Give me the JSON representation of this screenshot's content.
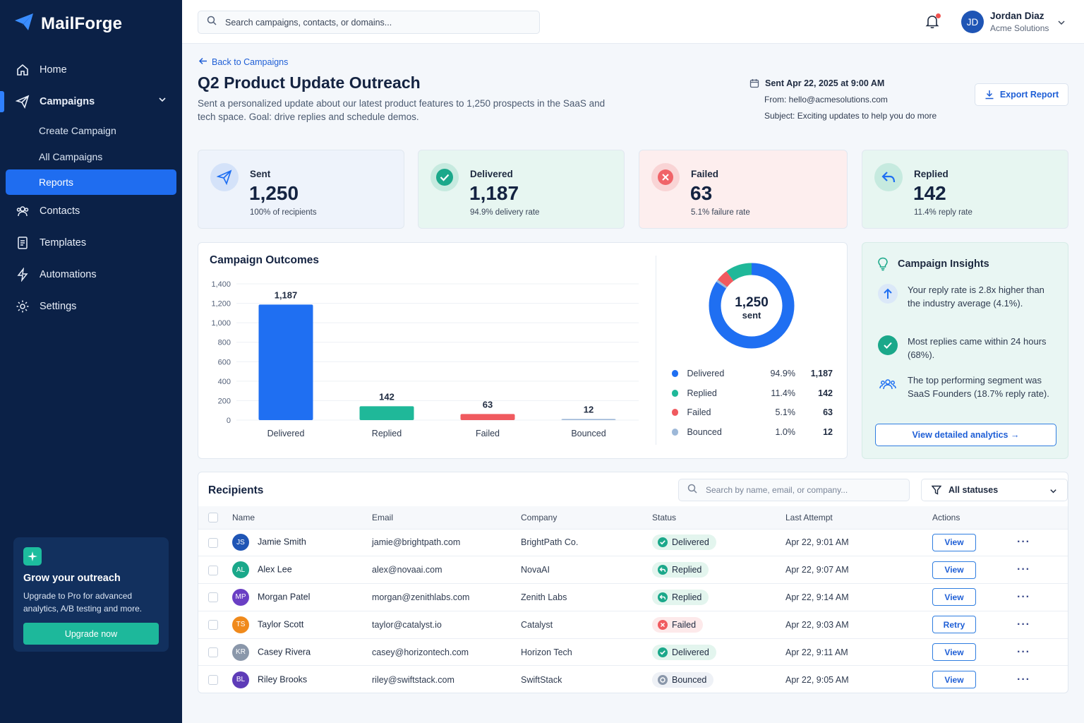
{
  "app": {
    "name": "MailForge"
  },
  "sidebar": {
    "items": [
      {
        "label": "Home",
        "icon": "home-icon"
      },
      {
        "label": "Campaigns",
        "icon": "send-icon"
      },
      {
        "label": "Contacts",
        "icon": "users-icon"
      },
      {
        "label": "Templates",
        "icon": "document-icon"
      },
      {
        "label": "Automations",
        "icon": "bolt-icon"
      },
      {
        "label": "Settings",
        "icon": "gear-icon"
      }
    ],
    "sub_items": [
      {
        "label": "Create Campaign"
      },
      {
        "label": "All Campaigns"
      },
      {
        "label": "Reports"
      }
    ],
    "promo": {
      "title": "Grow your outreach",
      "text": "Upgrade to Pro for advanced analytics, A/B testing and more.",
      "button": "Upgrade now"
    }
  },
  "topbar": {
    "search_placeholder": "Search campaigns, contacts, or domains...",
    "user": {
      "initials": "JD",
      "name": "Jordan Diaz",
      "org": "Acme Solutions"
    }
  },
  "header": {
    "back": "Back to Campaigns",
    "title": "Q2 Product Update Outreach",
    "description": "Sent a personalized update about our latest product features to 1,250 prospects in the SaaS and tech space. Goal: drive replies and schedule demos.",
    "sent": "Sent Apr 22, 2025 at 9:00 AM",
    "from": "From: hello@acmesolutions.com",
    "subject": "Subject: Exciting updates to help you do more",
    "export": "Export Report"
  },
  "stats": [
    {
      "label": "Sent",
      "value": "1,250",
      "sub": "100% of recipients"
    },
    {
      "label": "Delivered",
      "value": "1,187",
      "sub": "94.9% delivery rate"
    },
    {
      "label": "Failed",
      "value": "63",
      "sub": "5.1% failure rate"
    },
    {
      "label": "Replied",
      "value": "142",
      "sub": "11.4% reply rate"
    }
  ],
  "colors": {
    "delivered": "#1f6ff2",
    "replied": "#1fb899",
    "failed": "#f05a5f",
    "bounced": "#9db8d8"
  },
  "chart_data": {
    "type": "bar",
    "title": "Campaign Outcomes",
    "categories": [
      "Delivered",
      "Replied",
      "Failed",
      "Bounced"
    ],
    "values": [
      1187,
      142,
      63,
      12
    ],
    "ylim": [
      0,
      1400
    ],
    "yticks": [
      "0",
      "200",
      "400",
      "600",
      "800",
      "1,000",
      "1,200",
      "1,400"
    ],
    "data_labels": [
      "1,187",
      "142",
      "63",
      "12"
    ],
    "grid": true,
    "donut": {
      "center_value": "1,250",
      "center_label": "sent",
      "slices": [
        {
          "name": "Delivered",
          "percent": "94.9%",
          "count": "1,187",
          "value": 94.9
        },
        {
          "name": "Replied",
          "percent": "11.4%",
          "count": "142",
          "value": 11.4
        },
        {
          "name": "Failed",
          "percent": "5.1%",
          "count": "63",
          "value": 5.1
        },
        {
          "name": "Bounced",
          "percent": "1.0%",
          "count": "12",
          "value": 1.0
        }
      ]
    }
  },
  "insights": {
    "title": "Campaign Insights",
    "items": [
      {
        "icon": "arrow-up-icon",
        "text": "Your reply rate is 2.8x higher than the industry average (4.1%)."
      },
      {
        "icon": "check-icon",
        "text": "Most replies came within 24 hours (68%)."
      },
      {
        "icon": "users-icon",
        "text": "The top performing segment was SaaS Founders (18.7% reply rate)."
      }
    ],
    "button": "View detailed analytics →"
  },
  "recipients": {
    "title": "Recipients",
    "search_placeholder": "Search by name, email, or company...",
    "filter": "All statuses",
    "columns": [
      "Name",
      "Email",
      "Company",
      "Status",
      "Last Attempt",
      "Actions"
    ],
    "rows": [
      {
        "initials": "JS",
        "avatar_color": "#1f55b5",
        "name": "Jamie Smith",
        "email": "jamie@brightpath.com",
        "company": "BrightPath Co.",
        "status": "Delivered",
        "last": "Apr 22, 9:01 AM",
        "action": "View"
      },
      {
        "initials": "AL",
        "avatar_color": "#1aa88a",
        "name": "Alex Lee",
        "email": "alex@novaai.com",
        "company": "NovaAI",
        "status": "Replied",
        "last": "Apr 22, 9:07 AM",
        "action": "View"
      },
      {
        "initials": "MP",
        "avatar_color": "#6a3fc4",
        "name": "Morgan Patel",
        "email": "morgan@zenithlabs.com",
        "company": "Zenith Labs",
        "status": "Replied",
        "last": "Apr 22, 9:14 AM",
        "action": "View"
      },
      {
        "initials": "TS",
        "avatar_color": "#f08a1c",
        "name": "Taylor Scott",
        "email": "taylor@catalyst.io",
        "company": "Catalyst",
        "status": "Failed",
        "last": "Apr 22, 9:03 AM",
        "action": "Retry"
      },
      {
        "initials": "KR",
        "avatar_color": "#8a97aa",
        "name": "Casey Rivera",
        "email": "casey@horizontech.com",
        "company": "Horizon Tech",
        "status": "Delivered",
        "last": "Apr 22, 9:11 AM",
        "action": "View"
      },
      {
        "initials": "BL",
        "avatar_color": "#5e3cb8",
        "name": "Riley Brooks",
        "email": "riley@swiftstack.com",
        "company": "SwiftStack",
        "status": "Bounced",
        "last": "Apr 22, 9:05 AM",
        "action": "View"
      }
    ]
  }
}
